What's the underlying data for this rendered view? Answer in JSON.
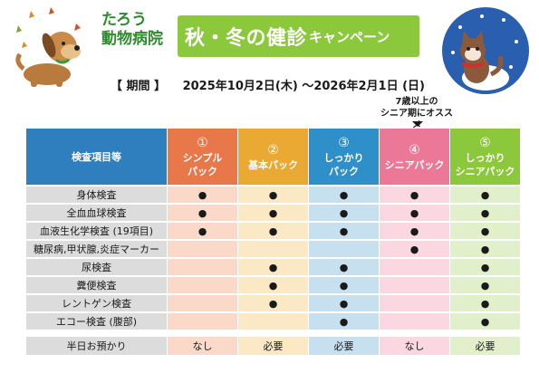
{
  "clinic": {
    "name_line1": "たろう",
    "name_line2": "動物病院"
  },
  "banner": {
    "title_main": "秋・冬の健診",
    "title_sub": "キャンペーン"
  },
  "period": {
    "label": "【 期間 】",
    "range": "2025年10月2日(木) ～2026年2月1日 (日)"
  },
  "callout": {
    "line1": "7歳以上の",
    "line2": "シニア期にオススメ"
  },
  "colors": {
    "header_label": "#2f7fbe",
    "plans": [
      "#e8784a",
      "#e9a933",
      "#2f8fc8",
      "#ec7898",
      "#8cc83c"
    ],
    "cells": [
      "#fbd9c8",
      "#fbe8c5",
      "#c6e0f0",
      "#fbd7e2",
      "#e1f0cb"
    ],
    "banner": "#8cc83c",
    "clinic_name": "#2e8b2e"
  },
  "table": {
    "header_label": "検査項目等",
    "plans": [
      {
        "num": "①",
        "name_line1": "シンプル",
        "name_line2": "パック"
      },
      {
        "num": "②",
        "name_line1": "基本パック",
        "name_line2": ""
      },
      {
        "num": "③",
        "name_line1": "しっかり",
        "name_line2": "パック"
      },
      {
        "num": "④",
        "name_line1": "シニアパック",
        "name_line2": ""
      },
      {
        "num": "⑤",
        "name_line1": "しっかり",
        "name_line2": "シニアパック"
      }
    ],
    "rows": [
      {
        "label": "身体検査",
        "marks": [
          "●",
          "●",
          "●",
          "●",
          "●"
        ]
      },
      {
        "label": "全血血球検査",
        "marks": [
          "●",
          "●",
          "●",
          "●",
          "●"
        ]
      },
      {
        "label": "血液生化学検査 (19項目)",
        "marks": [
          "●",
          "●",
          "●",
          "●",
          "●"
        ]
      },
      {
        "label": "糖尿病,甲状腺,炎症マーカー",
        "marks": [
          "",
          "",
          "",
          "●",
          "●"
        ]
      },
      {
        "label": "尿検査",
        "marks": [
          "",
          "●",
          "●",
          "",
          "●"
        ]
      },
      {
        "label": "糞便検査",
        "marks": [
          "",
          "●",
          "●",
          "",
          "●"
        ]
      },
      {
        "label": "レントゲン検査",
        "marks": [
          "",
          "●",
          "●",
          "",
          "●"
        ]
      },
      {
        "label": "エコー検査 (腹部)",
        "marks": [
          "",
          "",
          "●",
          "",
          "●"
        ]
      }
    ],
    "final_row": {
      "label": "半日お預かり",
      "values": [
        "なし",
        "必要",
        "必要",
        "なし",
        "必要"
      ]
    }
  },
  "icons": {
    "left": "dog-with-autumn-leaves-icon",
    "right": "cat-in-snow-icon"
  }
}
